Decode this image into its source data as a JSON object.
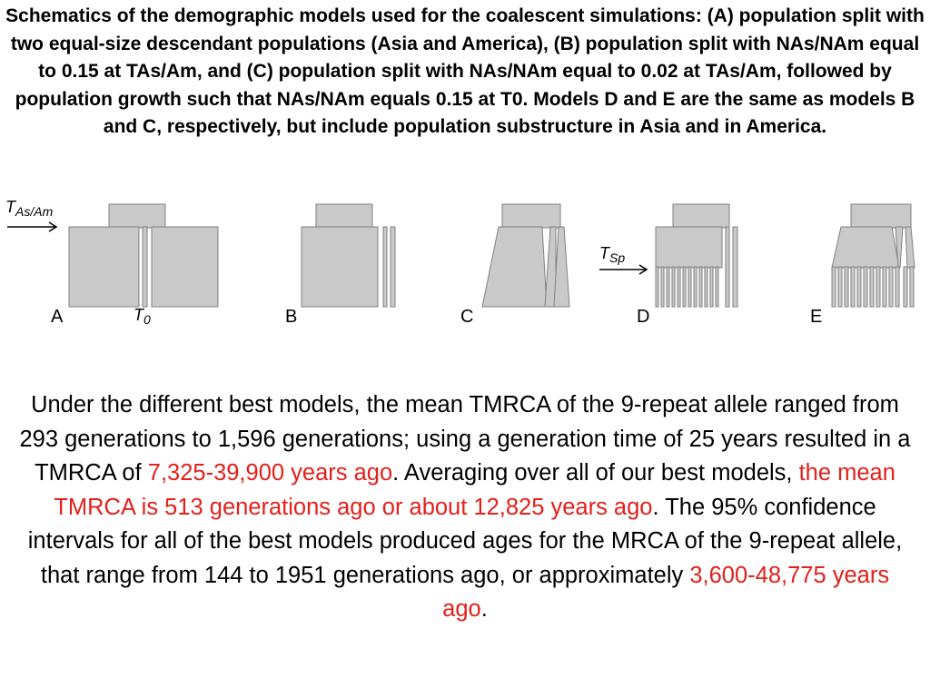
{
  "caption": "Schematics of the demographic models used for the coalescent simulations: (A) population split with two equal-size descendant populations (Asia and America), (B) population split with NAs/NAm equal to 0.15 at TAs/Am, and (C) population split with NAs/NAm equal to 0.02 at TAs/Am, followed by population growth such that NAs/NAm equals 0.15 at T0. Models D and E are the same as models B and C, respectively, but include population substructure in Asia and in America.",
  "figure": {
    "t_split_label": "T",
    "t_split_sub": "As/Am",
    "t_sp_label": "T",
    "t_sp_sub": "Sp",
    "t0_label": "T",
    "t0_sub": "0",
    "panels": [
      "A",
      "B",
      "C",
      "D",
      "E"
    ],
    "fill_color": "#c9c9c9",
    "edge_color": "#808080"
  },
  "body": {
    "s1": "Under the different best models, the mean TMRCA of the 9-repeat allele ranged from 293 generations to 1,596 generations; using a generation time of 25 years resulted in a TMRCA of ",
    "h1": "7,325-39,900 years ago",
    "s2": ". Averaging over all of our best models, ",
    "h2": "the mean TMRCA is 513 generations ago or about 12,825 years ago",
    "s3": ". The 95% confidence intervals for all of the best models produced ages for the MRCA of the 9-repeat allele, that range from 144 to 1951 generations ago, or approximately ",
    "h3": "3,600-48,775 years ago",
    "s4": "."
  },
  "colors": {
    "highlight": "#e3201b",
    "text": "#000000"
  }
}
